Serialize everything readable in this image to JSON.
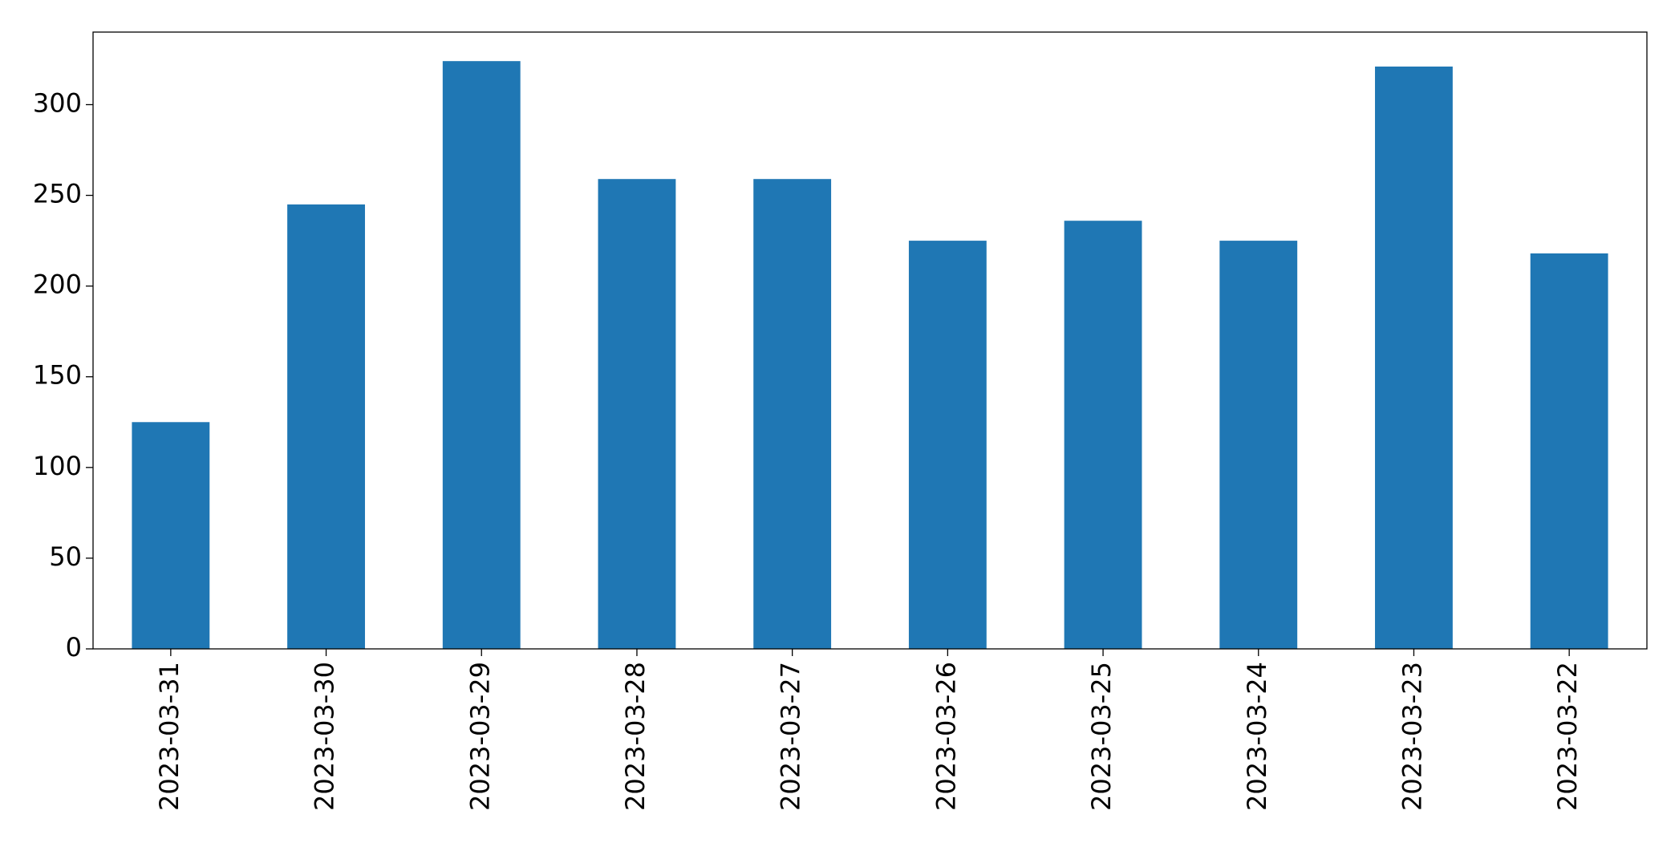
{
  "chart_data": {
    "type": "bar",
    "categories": [
      "2023-03-31",
      "2023-03-30",
      "2023-03-29",
      "2023-03-28",
      "2023-03-27",
      "2023-03-26",
      "2023-03-25",
      "2023-03-24",
      "2023-03-23",
      "2023-03-22"
    ],
    "values": [
      125,
      245,
      324,
      259,
      259,
      225,
      236,
      225,
      321,
      218
    ],
    "color": "#1f77b4",
    "ylim": [
      0,
      340
    ],
    "yticks": [
      0,
      50,
      100,
      150,
      200,
      250,
      300
    ],
    "grid": false
  }
}
